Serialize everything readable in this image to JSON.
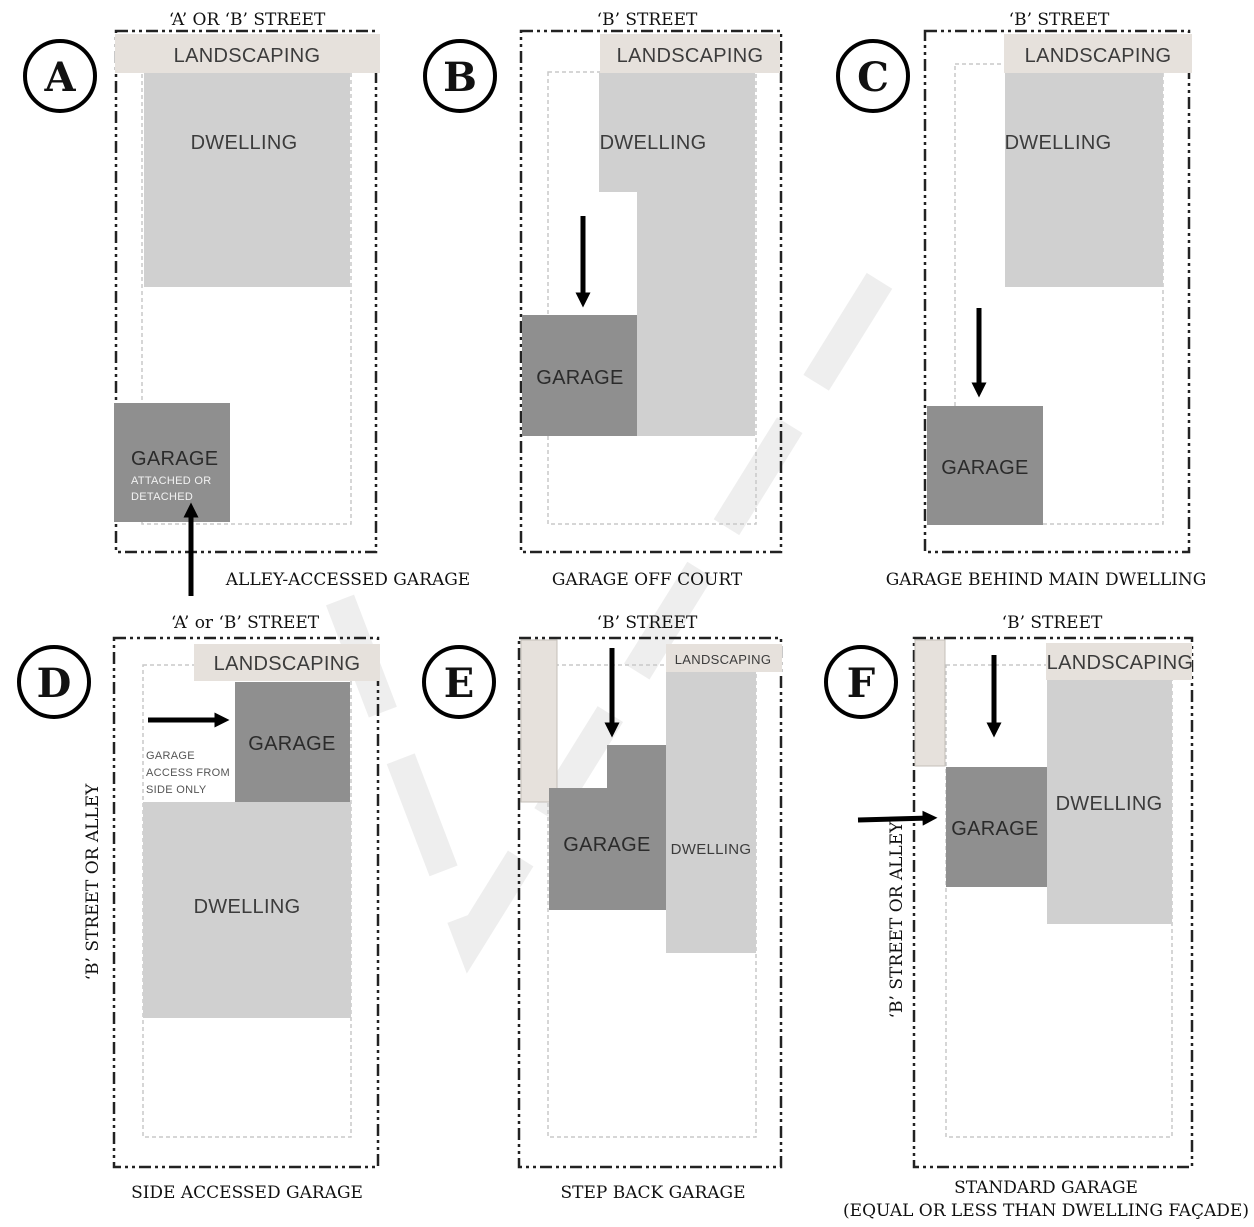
{
  "diagrams": {
    "a": {
      "letter": "A",
      "street": "‘A’ OR ‘B’ STREET",
      "caption": "ALLEY-ACCESSED GARAGE",
      "landscaping": "LANDSCAPING",
      "dwelling": "DWELLING",
      "garage": "GARAGE",
      "garage_note_1": "ATTACHED OR",
      "garage_note_2": "DETACHED"
    },
    "b": {
      "letter": "B",
      "street": "‘B’ STREET",
      "caption": "GARAGE OFF COURT",
      "landscaping": "LANDSCAPING",
      "dwelling": "DWELLING",
      "garage": "GARAGE"
    },
    "c": {
      "letter": "C",
      "street": "‘B’ STREET",
      "caption": "GARAGE BEHIND MAIN DWELLING",
      "landscaping": "LANDSCAPING",
      "dwelling": "DWELLING",
      "garage": "GARAGE"
    },
    "d": {
      "letter": "D",
      "street": "‘A’ or ‘B’ STREET",
      "side_street": "‘B’ STREET OR ALLEY",
      "caption": "SIDE ACCESSED GARAGE",
      "landscaping": "LANDSCAPING",
      "dwelling": "DWELLING",
      "garage": "GARAGE",
      "access_1": "GARAGE",
      "access_2": "ACCESS FROM",
      "access_3": "SIDE ONLY"
    },
    "e": {
      "letter": "E",
      "street": "‘B’ STREET",
      "caption": "STEP BACK GARAGE",
      "landscaping": "LANDSCAPING",
      "dwelling": "DWELLING",
      "garage": "GARAGE"
    },
    "f": {
      "letter": "F",
      "street": "‘B’ STREET",
      "side_street": "‘B’ STREET OR ALLEY",
      "caption": "STANDARD GARAGE",
      "caption_2": "(EQUAL OR LESS THAN DWELLING FAÇADE)",
      "landscaping": "LANDSCAPING",
      "dwelling": "DWELLING",
      "garage": "GARAGE"
    }
  },
  "colors": {
    "landscaping": "#e6e1dc",
    "dwelling": "#d0d0d0",
    "garage": "#8f8f8f",
    "lot_border": "#222222",
    "setback": "#c9c9c9",
    "watermark": "#ececec"
  }
}
